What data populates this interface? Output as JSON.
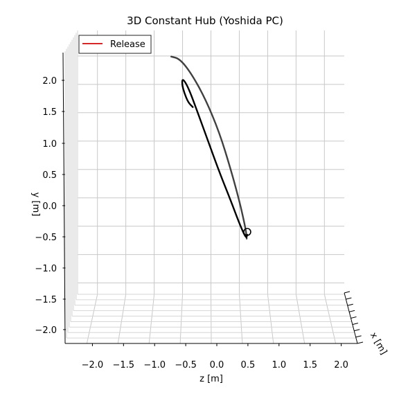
{
  "chart_data": {
    "type": "line",
    "projection": "3d",
    "title": "3D Constant Hub (Yoshida PC)",
    "xlabel": "z [m]",
    "ylabel": "y [m]",
    "zlabel": "x [m]",
    "xlim": [
      -2.35,
      2.35
    ],
    "ylim": [
      -2.2,
      2.45
    ],
    "x_ticks": [
      "−2.0",
      "−1.5",
      "−1.0",
      "−0.5",
      "0.0",
      "0.5",
      "1.0",
      "1.5",
      "2.0"
    ],
    "y_ticks": [
      "−2.0",
      "−1.5",
      "−1.0",
      "−0.5",
      "0.0",
      "0.5",
      "1.0",
      "1.5",
      "2.0"
    ],
    "grid": true,
    "legend": {
      "position": "top-left",
      "entries": [
        {
          "label": "Release",
          "color": "#d62728"
        }
      ]
    },
    "series": [
      {
        "color": "#404040",
        "z": [
          -0.7,
          -0.55,
          -0.35,
          -0.1,
          0.15,
          0.35,
          0.5,
          0.58,
          0.62,
          0.63
        ],
        "y": [
          1.99,
          1.95,
          1.7,
          1.25,
          0.65,
          0.0,
          -0.55,
          -0.9,
          -1.1,
          -1.22
        ]
      },
      {
        "color": "#000000",
        "z": [
          -0.32,
          -0.4,
          -0.47,
          -0.51,
          -0.5,
          -0.4,
          -0.25,
          -0.05,
          0.15,
          0.35,
          0.5,
          0.62,
          0.64
        ],
        "y": [
          1.1,
          1.18,
          1.35,
          1.5,
          1.61,
          1.45,
          1.05,
          0.5,
          -0.05,
          -0.55,
          -0.95,
          -1.22,
          -1.15
        ]
      }
    ],
    "marker": {
      "label": "",
      "shape": "open-circle",
      "z": 0.64,
      "y": -1.1
    }
  }
}
